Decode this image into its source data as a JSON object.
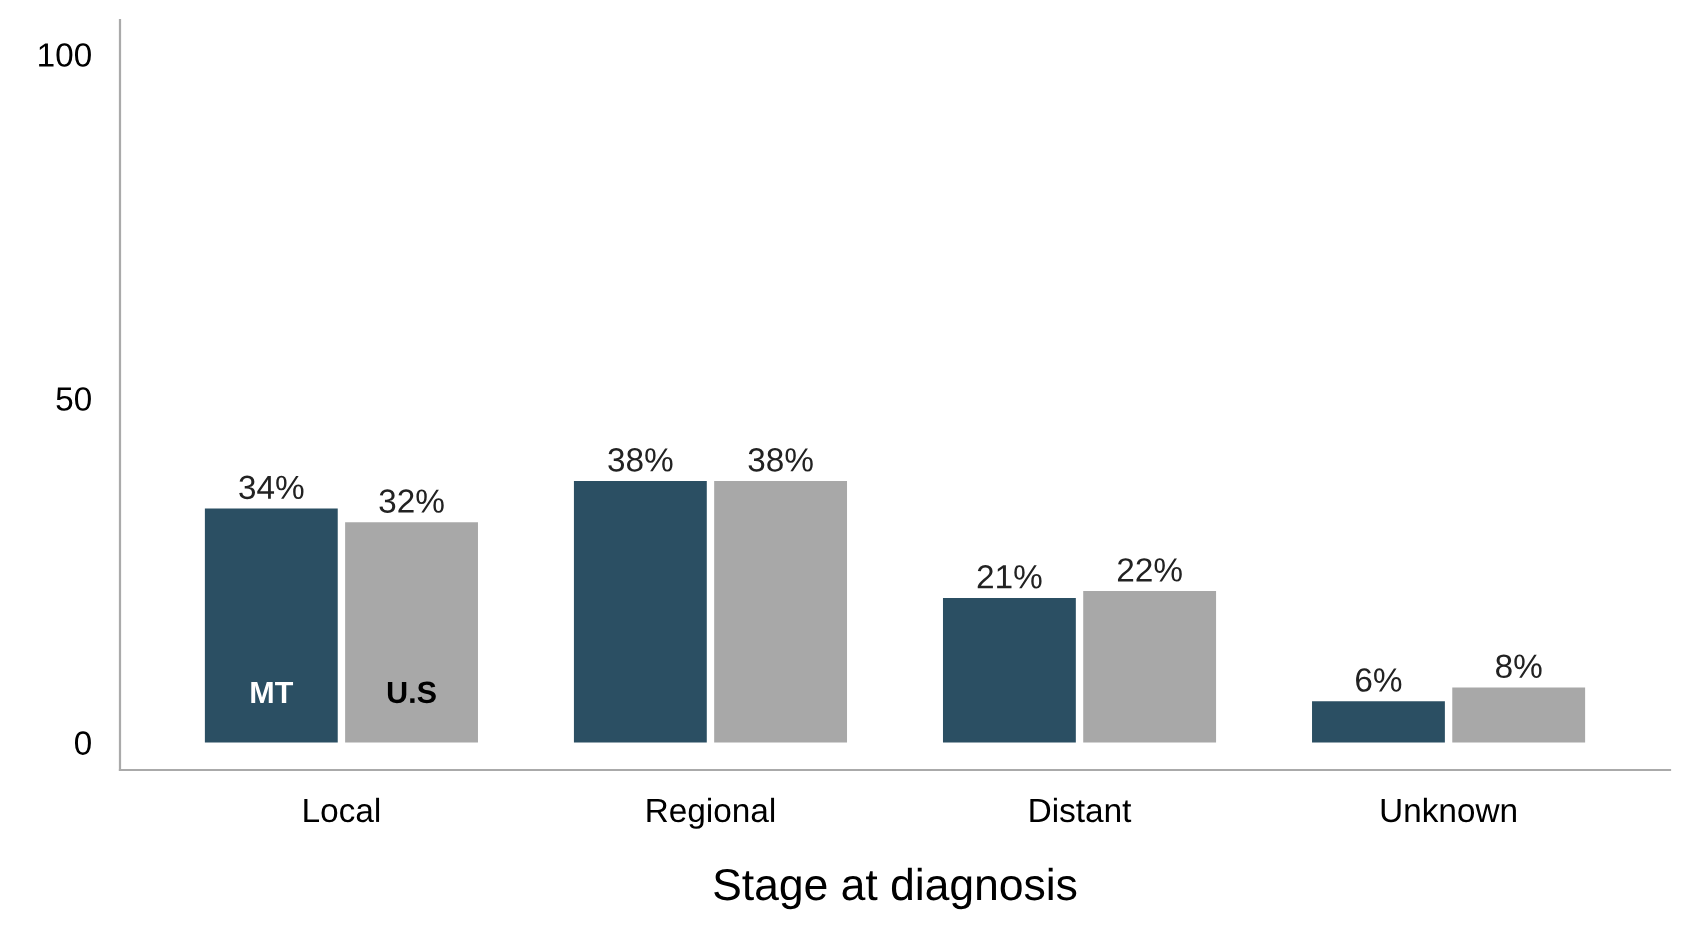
{
  "chart_data": {
    "type": "bar",
    "xlabel": "Stage at diagnosis",
    "categories": [
      "Local",
      "Regional",
      "Distant",
      "Unknown"
    ],
    "series": [
      {
        "name": "MT",
        "color": "#2b4f63",
        "values": [
          34,
          38,
          21,
          6
        ],
        "value_labels": [
          "34%",
          "38%",
          "21%",
          "6%"
        ]
      },
      {
        "name": "U.S",
        "color": "#a8a8a8",
        "values": [
          32,
          38,
          22,
          8
        ],
        "value_labels": [
          "32%",
          "38%",
          "22%",
          "8%"
        ]
      }
    ],
    "ylim": [
      -4,
      105
    ],
    "yticks": [
      0,
      50,
      100
    ],
    "grid": false,
    "legend": false
  }
}
